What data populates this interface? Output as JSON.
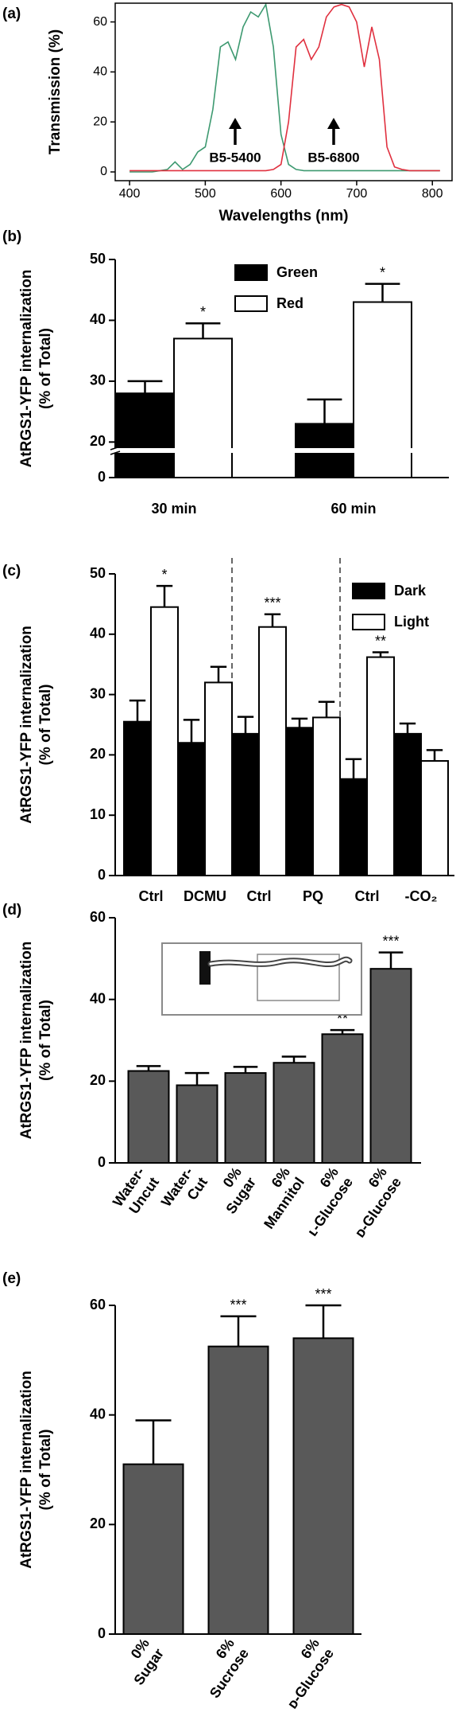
{
  "chart_data": [
    {
      "type": "line",
      "panel_label": "(a)",
      "ylabel": "Transmission (%)",
      "xlabel": "Wavelengths (nm)",
      "x": [
        400,
        410,
        420,
        430,
        440,
        450,
        460,
        470,
        480,
        490,
        500,
        510,
        520,
        530,
        540,
        550,
        560,
        570,
        580,
        590,
        600,
        610,
        620,
        630,
        640,
        650,
        660,
        670,
        680,
        690,
        700,
        710,
        720,
        730,
        740,
        750,
        760,
        770,
        780,
        790,
        800,
        810
      ],
      "series": [
        {
          "color": "#3d9970",
          "values": [
            0,
            0,
            0,
            0,
            0.5,
            1,
            4,
            1,
            3,
            8,
            10,
            25,
            50,
            52,
            45,
            58,
            64,
            62,
            67,
            50,
            15,
            3,
            1,
            0.5,
            0.5,
            0.5,
            0.5,
            0.5,
            0.5,
            0.5,
            0.5,
            0.5,
            0.5,
            0.5,
            0.5,
            0.5,
            0.5,
            0.5,
            0.5,
            0.5,
            0.5,
            0.5
          ]
        },
        {
          "color": "#e0303f",
          "values": [
            0.5,
            0.5,
            0.5,
            0.5,
            0.5,
            0.5,
            0.5,
            0.5,
            0.5,
            0.5,
            0.5,
            0.5,
            0.5,
            0.5,
            0.5,
            0.5,
            0.5,
            0.5,
            0.5,
            1,
            3,
            20,
            50,
            53,
            45,
            50,
            62,
            66,
            67,
            66,
            60,
            42,
            58,
            45,
            10,
            2,
            1,
            0.5,
            0.5,
            0.5,
            0.5,
            0.5
          ]
        }
      ],
      "xlim": [
        381,
        826
      ],
      "ylim": [
        -3.5,
        67.5
      ],
      "xticks": [
        400,
        500,
        600,
        700,
        800
      ],
      "yticks": [
        0,
        20,
        40,
        60
      ],
      "annotations": [
        "B5-5400",
        "B5-6800"
      ]
    },
    {
      "type": "bar",
      "panel_label": "(b)",
      "ylabel": [
        "AtRGS1-YFP internalization",
        "(% of Total)"
      ],
      "categories": [
        "30 min",
        "60 min"
      ],
      "series": [
        {
          "name": "Green",
          "color": "#000000",
          "values": [
            28,
            23
          ],
          "errors": [
            2,
            4
          ]
        },
        {
          "name": "Red",
          "color": "#ffffff",
          "values": [
            37,
            43
          ],
          "errors": [
            2.5,
            3
          ],
          "annotations": [
            "*",
            "*"
          ]
        }
      ],
      "ylim": [
        0,
        50
      ],
      "yticks": [
        0,
        20,
        30,
        40,
        50
      ],
      "axis_break": 19
    },
    {
      "type": "bar",
      "panel_label": "(c)",
      "ylabel": [
        "AtRGS1-YFP internalization",
        "(% of Total)"
      ],
      "categories": [
        "Ctrl",
        "DCMU",
        "Ctrl",
        "PQ",
        "Ctrl",
        "-CO₂"
      ],
      "series": [
        {
          "name": "Dark",
          "color": "#000000",
          "values": [
            25.5,
            22,
            23.5,
            24.5,
            16,
            23.5
          ],
          "errors": [
            3.5,
            3.8,
            2.8,
            1.5,
            3.3,
            1.7
          ]
        },
        {
          "name": "Light",
          "color": "#ffffff",
          "values": [
            44.5,
            32,
            41.2,
            26.2,
            36.2,
            19
          ],
          "errors": [
            3.5,
            2.6,
            2.1,
            2.6,
            0.8,
            1.8
          ],
          "annotations": [
            "*",
            null,
            "***",
            null,
            "**",
            null
          ]
        }
      ],
      "ylim": [
        0,
        50
      ],
      "yticks": [
        0,
        10,
        20,
        30,
        40,
        50
      ]
    },
    {
      "type": "bar",
      "panel_label": "(d)",
      "ylabel": [
        "AtRGS1-YFP internalization",
        "(% of Total)"
      ],
      "categories": [
        [
          "Water-",
          "Uncut"
        ],
        [
          "Water-",
          "Cut"
        ],
        [
          "0%",
          "Sugar"
        ],
        [
          "6%",
          "Mannitol"
        ],
        [
          "6%",
          "ʟ-Glucose"
        ],
        [
          "6%",
          "ᴅ-Glucose"
        ]
      ],
      "color": "#595959",
      "values": [
        22.5,
        19,
        22,
        24.5,
        31.5,
        47.5
      ],
      "errors": [
        1.2,
        3,
        1.5,
        1.5,
        1,
        4
      ],
      "annotations": [
        null,
        null,
        null,
        null,
        "**",
        "***"
      ],
      "ylim": [
        0,
        60
      ],
      "yticks": [
        0,
        20,
        40,
        60
      ]
    },
    {
      "type": "bar",
      "panel_label": "(e)",
      "ylabel": [
        "AtRGS1-YFP internalization",
        "(% of Total)"
      ],
      "categories": [
        [
          "0%",
          "Sugar"
        ],
        [
          "6%",
          "Sucrose"
        ],
        [
          "6%",
          "ᴅ-Glucose"
        ]
      ],
      "color": "#595959",
      "values": [
        31,
        52.5,
        54
      ],
      "errors": [
        8,
        5.5,
        6
      ],
      "annotations": [
        null,
        "***",
        "***"
      ],
      "ylim": [
        0,
        60
      ],
      "yticks": [
        0,
        20,
        40,
        60
      ]
    }
  ]
}
